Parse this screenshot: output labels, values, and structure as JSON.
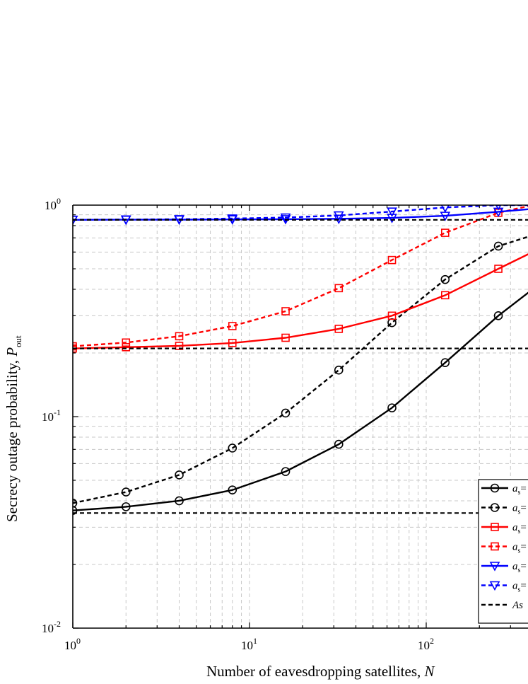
{
  "chart_data": {
    "type": "line",
    "xlabel": "Number of eavesdropping satellites, ",
    "xlabel_var": "N",
    "ylabel": "Secrecy outage probability, ",
    "ylabel_var": "P",
    "ylabel_sub": "out",
    "x_scale": "log",
    "y_scale": "log",
    "xlim": [
      1,
      400
    ],
    "ylim": [
      0.01,
      1
    ],
    "x_ticks": [
      {
        "value": 1,
        "base": "10",
        "exp": "0"
      },
      {
        "value": 10,
        "base": "10",
        "exp": "1"
      },
      {
        "value": 100,
        "base": "10",
        "exp": "2"
      }
    ],
    "y_ticks": [
      {
        "value": 0.01,
        "base": "10",
        "exp": "-2"
      },
      {
        "value": 0.1,
        "base": "10",
        "exp": "-1"
      },
      {
        "value": 1,
        "base": "10",
        "exp": "0"
      }
    ],
    "grid": true,
    "legend_position": "bottom-right",
    "series": [
      {
        "legend": "a",
        "legend_sub": "s",
        "legend_rest": "=",
        "color": "#000000",
        "dash": "solid",
        "marker": "circle",
        "x": [
          1,
          2,
          4,
          8,
          16,
          32,
          64,
          128,
          256,
          400
        ],
        "y": [
          0.036,
          0.0375,
          0.04,
          0.045,
          0.055,
          0.074,
          0.11,
          0.18,
          0.3,
          0.4
        ]
      },
      {
        "legend": "a",
        "legend_sub": "s",
        "legend_rest": "=",
        "color": "#000000",
        "dash": "dashed",
        "marker": "circle",
        "x": [
          1,
          2,
          4,
          8,
          16,
          32,
          64,
          128,
          256,
          400
        ],
        "y": [
          0.039,
          0.044,
          0.053,
          0.071,
          0.104,
          0.166,
          0.278,
          0.445,
          0.64,
          0.72
        ]
      },
      {
        "legend": "a",
        "legend_sub": "s",
        "legend_rest": "=",
        "color": "#ff0000",
        "dash": "solid",
        "marker": "square",
        "x": [
          1,
          2,
          4,
          8,
          16,
          32,
          64,
          128,
          256,
          400
        ],
        "y": [
          0.21,
          0.213,
          0.216,
          0.223,
          0.236,
          0.26,
          0.3,
          0.375,
          0.5,
          0.6
        ]
      },
      {
        "legend": "a",
        "legend_sub": "s",
        "legend_rest": "=",
        "color": "#ff0000",
        "dash": "dashed",
        "marker": "square",
        "x": [
          1,
          2,
          4,
          8,
          16,
          32,
          64,
          128,
          256,
          400
        ],
        "y": [
          0.215,
          0.224,
          0.24,
          0.268,
          0.315,
          0.405,
          0.55,
          0.74,
          0.92,
          1.0
        ]
      },
      {
        "legend": "a",
        "legend_sub": "s",
        "legend_rest": "=",
        "color": "#0000ff",
        "dash": "solid",
        "marker": "triangle",
        "x": [
          1,
          2,
          4,
          8,
          16,
          32,
          64,
          128,
          256,
          400
        ],
        "y": [
          0.852,
          0.853,
          0.854,
          0.856,
          0.858,
          0.862,
          0.87,
          0.89,
          0.93,
          0.96
        ]
      },
      {
        "legend": "a",
        "legend_sub": "s",
        "legend_rest": "=",
        "color": "#0000ff",
        "dash": "dashed",
        "marker": "triangle",
        "x": [
          1,
          2,
          4,
          8,
          16,
          32,
          64,
          128,
          256,
          400
        ],
        "y": [
          0.853,
          0.855,
          0.858,
          0.864,
          0.874,
          0.894,
          0.932,
          0.975,
          1.0,
          1.0
        ]
      },
      {
        "legend": "As",
        "color": "#000000",
        "dash": "dashed",
        "marker": "none",
        "asymptotes": [
          0.035,
          0.21,
          0.852
        ]
      }
    ]
  }
}
